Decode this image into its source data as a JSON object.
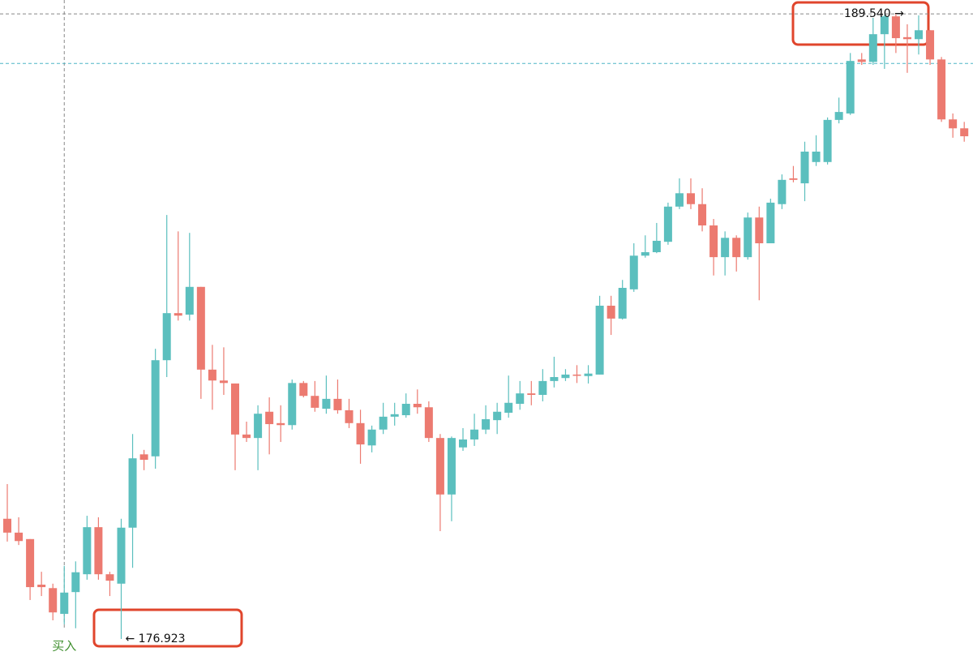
{
  "chart_data": {
    "type": "candlestick",
    "ylim": [
      176.58,
      189.82
    ],
    "up_color": "#5bbfbe",
    "down_color": "#ec7a70",
    "open": [
      179.35,
      179.07,
      178.94,
      178.02,
      177.95,
      177.43,
      177.87,
      178.23,
      179.18,
      178.23,
      178.04,
      179.17,
      180.65,
      180.61,
      182.55,
      183.5,
      183.47,
      184.03,
      182.36,
      182.14,
      182.08,
      181.05,
      180.98,
      181.51,
      181.28,
      181.24,
      182.09,
      181.83,
      181.57,
      181.77,
      181.54,
      181.28,
      180.83,
      181.15,
      181.41,
      181.44,
      181.67,
      181.6,
      180.98,
      179.84,
      180.79,
      180.95,
      181.15,
      181.34,
      181.49,
      181.67,
      181.88,
      181.85,
      182.13,
      182.19,
      182.26,
      182.23,
      182.26,
      183.65,
      183.39,
      183.98,
      184.66,
      184.73,
      184.94,
      185.65,
      185.92,
      185.7,
      185.27,
      184.63,
      185.02,
      184.63,
      185.43,
      184.91,
      185.7,
      186.22,
      186.12,
      186.55,
      186.55,
      187.4,
      187.53,
      188.62,
      188.57,
      189.13,
      189.49,
      189.07,
      189.03,
      189.21,
      188.62,
      187.41,
      187.23
    ],
    "high": [
      180.05,
      179.38,
      178.94,
      178.28,
      178.04,
      178.4,
      178.49,
      179.41,
      179.38,
      178.28,
      179.35,
      181.06,
      180.74,
      182.78,
      185.48,
      185.15,
      185.12,
      184.03,
      182.86,
      182.81,
      182.08,
      181.31,
      181.64,
      181.8,
      181.64,
      182.16,
      182.13,
      182.13,
      182.24,
      182.16,
      181.77,
      181.55,
      181.23,
      181.69,
      181.69,
      181.88,
      181.96,
      181.72,
      181.06,
      181.01,
      181.18,
      181.47,
      181.64,
      181.69,
      182.24,
      182.13,
      182.13,
      182.37,
      182.62,
      182.37,
      182.45,
      182.45,
      183.85,
      183.85,
      184.17,
      184.91,
      185.07,
      185.32,
      185.73,
      186.22,
      186.22,
      186.02,
      185.4,
      185.15,
      185.07,
      185.53,
      185.65,
      185.81,
      186.3,
      186.47,
      186.96,
      187.09,
      187.45,
      187.85,
      188.75,
      188.75,
      189.46,
      189.52,
      189.54,
      189.33,
      189.51,
      189.21,
      188.67,
      187.53,
      187.36
    ],
    "low": [
      178.89,
      178.82,
      177.71,
      177.79,
      177.3,
      177.22,
      177.14,
      178.12,
      178.12,
      177.79,
      176.923,
      178.36,
      180.33,
      180.36,
      182.21,
      183.35,
      183.35,
      181.77,
      181.55,
      181.85,
      180.33,
      180.9,
      180.33,
      180.65,
      180.9,
      181.15,
      181.8,
      181.51,
      181.47,
      181.47,
      181.18,
      180.46,
      180.69,
      181.06,
      181.23,
      181.39,
      181.47,
      180.9,
      179.1,
      179.3,
      180.72,
      180.82,
      181.06,
      181.06,
      181.39,
      181.55,
      181.64,
      181.72,
      182.0,
      182.13,
      182.09,
      182.08,
      182.26,
      183.06,
      183.37,
      183.93,
      184.62,
      184.71,
      184.88,
      185.6,
      185.6,
      185.15,
      184.26,
      184.26,
      184.34,
      184.58,
      183.76,
      184.91,
      185.6,
      186.14,
      185.76,
      186.47,
      186.5,
      187.33,
      187.5,
      188.51,
      188.51,
      188.43,
      188.75,
      188.35,
      188.72,
      188.51,
      187.36,
      187.04,
      186.96
    ],
    "close": [
      179.07,
      178.9,
      177.97,
      177.97,
      177.46,
      177.86,
      178.27,
      179.18,
      178.23,
      178.1,
      179.17,
      180.57,
      180.54,
      182.55,
      183.5,
      183.45,
      184.03,
      182.36,
      182.14,
      182.09,
      181.05,
      180.98,
      181.47,
      181.26,
      181.24,
      182.09,
      181.83,
      181.59,
      181.77,
      181.54,
      181.28,
      180.85,
      181.15,
      181.41,
      181.46,
      181.67,
      181.6,
      180.98,
      179.84,
      180.98,
      180.95,
      181.15,
      181.36,
      181.51,
      181.69,
      181.88,
      181.85,
      182.13,
      182.21,
      182.26,
      182.24,
      182.28,
      183.65,
      183.39,
      184.01,
      184.66,
      184.73,
      184.96,
      185.65,
      185.92,
      185.7,
      185.27,
      184.63,
      185.02,
      184.63,
      185.43,
      184.91,
      185.73,
      186.19,
      186.19,
      186.76,
      186.76,
      187.4,
      187.56,
      188.59,
      188.57,
      189.13,
      189.49,
      189.05,
      189.03,
      189.21,
      188.62,
      187.41,
      187.23,
      187.07
    ],
    "hlines": [
      {
        "value": 189.54,
        "color": "#888888"
      },
      {
        "value": 188.54,
        "color": "#4fb6c6"
      }
    ],
    "annotations": [
      {
        "text": "189.540 →",
        "value": 189.54,
        "index": 78
      },
      {
        "text": "← 176.923",
        "value": 176.923,
        "index": 10
      },
      {
        "text": "买入",
        "index": 5,
        "color": "#3f8f2e"
      }
    ]
  }
}
